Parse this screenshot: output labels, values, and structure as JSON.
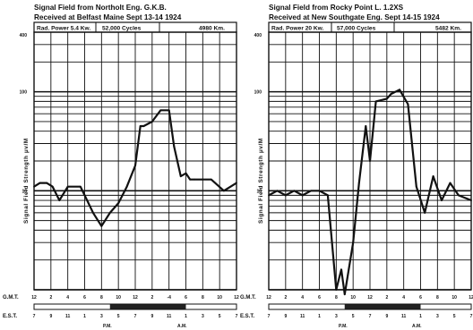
{
  "chart_data": [
    {
      "type": "line",
      "title": "Signal Field from Northolt Eng. G.K.B.",
      "subtitle": "Received at Belfast Maine Sept 13-14 1924",
      "header": [
        "Rad. Power 5.4 Kw.",
        "52,000 Cycles",
        "4980 Km."
      ],
      "ylabel": "Signal Field Strength μv/M",
      "yscale": "log",
      "ylim": [
        1,
        400
      ],
      "y_tick_labels": [
        "400",
        "100",
        "10"
      ],
      "y_tick_values": [
        400,
        100,
        10
      ],
      "xlim": [
        0,
        24
      ],
      "gmt_label": "G.M.T.",
      "est_label": "E.S.T.",
      "gmt_ticks": [
        "12",
        "2",
        "4",
        "6",
        "8",
        "10",
        "12",
        "2",
        "-4",
        "6",
        "8",
        "10",
        "12"
      ],
      "est_ticks": [
        "7",
        "9",
        "11",
        "1",
        "3",
        "5",
        "7",
        "9",
        "11",
        "1",
        "3",
        "5",
        "7"
      ],
      "pm_label": "P.M.",
      "am_label": "A.M.",
      "dark_band": [
        9,
        18
      ],
      "grid": true,
      "series": [
        {
          "x": [
            0,
            0.7,
            1.5,
            2.2,
            3,
            4,
            5.5,
            6,
            7,
            8,
            9,
            10,
            11,
            12,
            12.6,
            13,
            14,
            15,
            16,
            16.6,
            17.4,
            18,
            18.5,
            19,
            20,
            21,
            22.5,
            24
          ],
          "y": [
            11,
            12,
            12,
            11,
            8,
            11,
            11,
            9,
            6,
            4.4,
            6,
            7.5,
            11,
            18,
            45,
            45,
            50,
            65,
            65,
            28,
            14,
            15,
            13,
            13,
            13,
            13,
            10,
            12
          ]
        }
      ]
    },
    {
      "type": "line",
      "title": "Signal Field from Rocky Point L. 1.2XS",
      "subtitle": "Received at New Southgate Eng. Sept 14-15 1924",
      "header": [
        "Rad. Power 20 Kw.",
        "57,000 Cycles",
        "5482 Km."
      ],
      "ylabel": "Signal Field Strength μv/M",
      "yscale": "log",
      "ylim": [
        1,
        400
      ],
      "y_tick_labels": [
        "400",
        "100",
        "10"
      ],
      "y_tick_values": [
        400,
        100,
        10
      ],
      "xlim": [
        0,
        24
      ],
      "gmt_label": "G.M.T.",
      "est_label": "E.S.T.",
      "gmt_ticks": [
        "12",
        "2",
        "4",
        "6",
        "8",
        "10",
        "12",
        "2",
        "4",
        "6",
        "8",
        "10",
        "12"
      ],
      "est_ticks": [
        "7",
        "9",
        "11",
        "1",
        "3",
        "5",
        "7",
        "9",
        "11",
        "1",
        "3",
        "5",
        "7"
      ],
      "pm_label": "P.M.",
      "am_label": "A.M.",
      "dark_band": [
        9,
        18
      ],
      "grid": true,
      "series": [
        {
          "x": [
            0,
            1,
            2,
            3,
            4,
            5,
            6,
            7,
            7.5,
            8,
            8.6,
            9,
            10,
            10.7,
            11.5,
            12,
            12.7,
            14,
            14.5,
            15.5,
            16.5,
            17.5,
            18.5,
            19.5,
            20.5,
            21.5,
            22.5,
            24
          ],
          "y": [
            9,
            10,
            9,
            10,
            9,
            10,
            10,
            9,
            3,
            1,
            1.6,
            0.9,
            3,
            12,
            45,
            20,
            80,
            85,
            95,
            105,
            75,
            11,
            6,
            14,
            8,
            12,
            9,
            8
          ]
        }
      ]
    }
  ]
}
